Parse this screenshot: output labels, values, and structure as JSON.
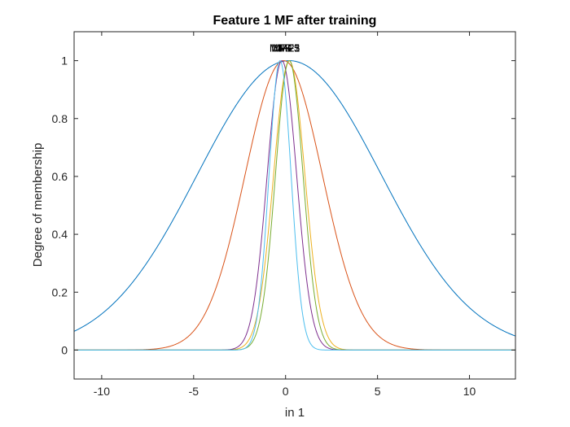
{
  "chart_data": {
    "type": "line",
    "title": "Feature  1 MF after training",
    "xlabel": "in 1",
    "ylabel": "Degree of membership",
    "xlim": [
      -11.5,
      12.5
    ],
    "ylim": [
      -0.1,
      1.1
    ],
    "xticks": [
      -10,
      -5,
      0,
      5,
      10
    ],
    "yticks": [
      0,
      0.2,
      0.4,
      0.6,
      0.8,
      1
    ],
    "xtick_labels": [
      "-10",
      "-5",
      "0",
      "5",
      "10"
    ],
    "ytick_labels": [
      "0",
      "0.2",
      "0.4",
      "0.6",
      "0.8",
      "1"
    ],
    "grid": false,
    "series": [
      {
        "name": "MF1",
        "function": "gaussmf",
        "center": 0.2,
        "sigma": 5.0,
        "color": "#0072BD"
      },
      {
        "name": "MF2",
        "function": "gaussmf",
        "center": -0.1,
        "sigma": 2.1,
        "color": "#D95319"
      },
      {
        "name": "MF3",
        "function": "gaussmf",
        "center": 0.2,
        "sigma": 0.85,
        "color": "#EDB120"
      },
      {
        "name": "MF4",
        "function": "gaussmf",
        "center": -0.2,
        "sigma": 0.8,
        "color": "#7E2F8E"
      },
      {
        "name": "MF5",
        "function": "gaussmf",
        "center": 0.2,
        "sigma": 0.75,
        "color": "#77AC30"
      },
      {
        "name": "MF6",
        "function": "gaussmf",
        "center": -0.3,
        "sigma": 0.6,
        "color": "#4DBEEE"
      }
    ]
  }
}
